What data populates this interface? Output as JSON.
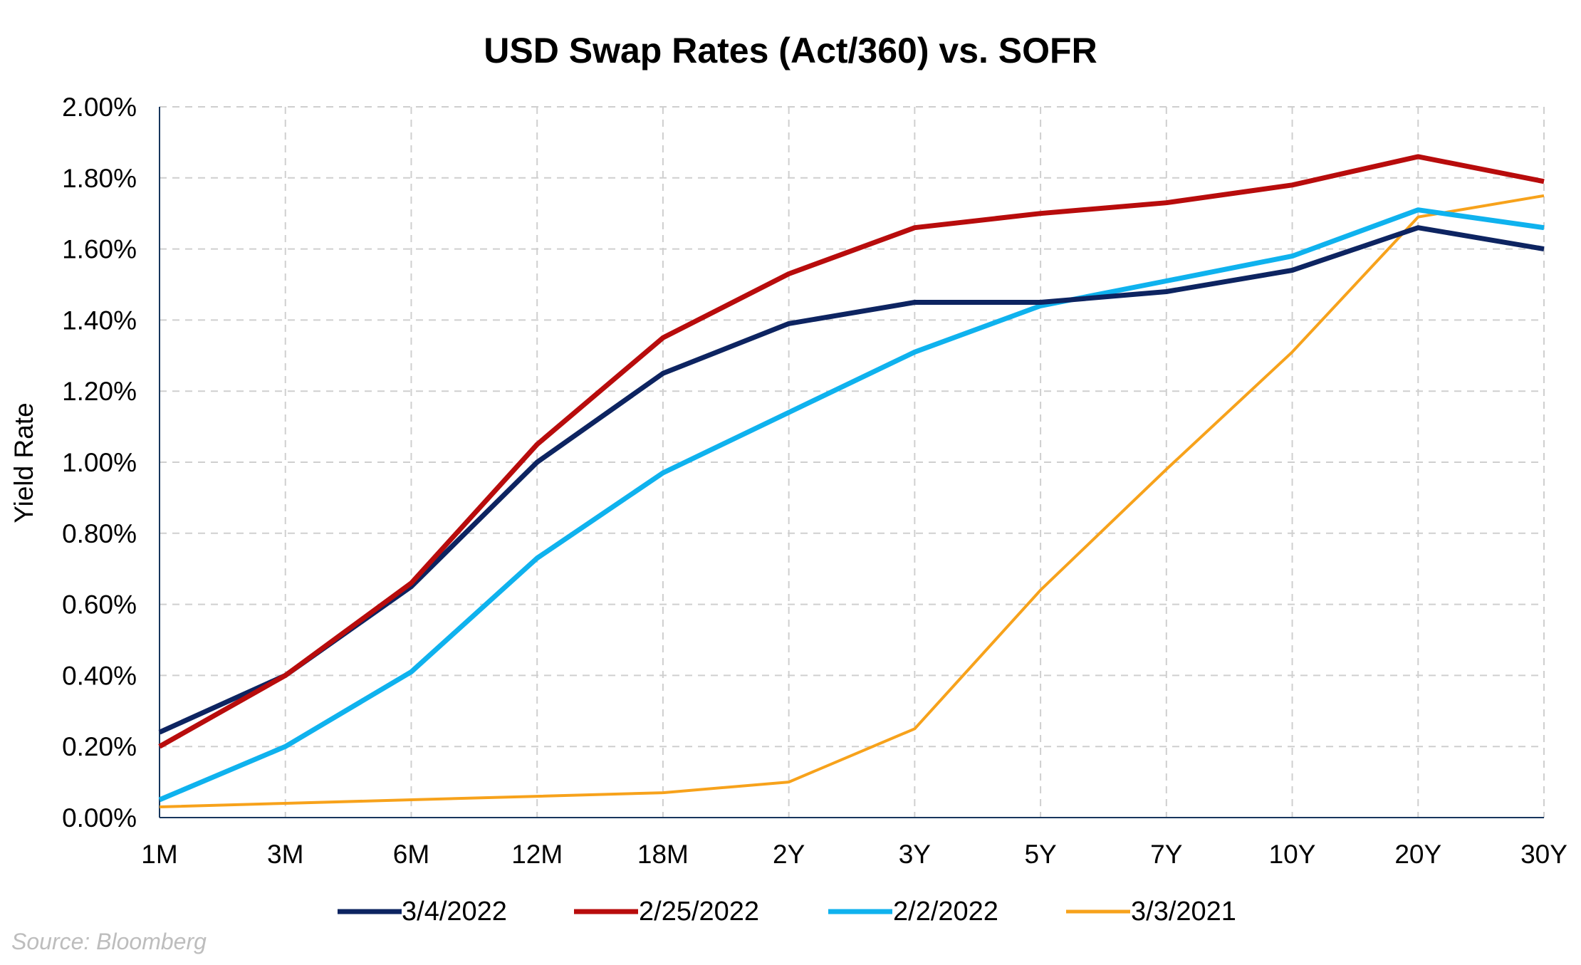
{
  "chart_data": {
    "type": "line",
    "title": "USD Swap Rates (Act/360) vs. SOFR",
    "xlabel": "",
    "ylabel": "Yield Rate",
    "categories": [
      "1M",
      "3M",
      "6M",
      "12M",
      "18M",
      "2Y",
      "3Y",
      "5Y",
      "7Y",
      "10Y",
      "20Y",
      "30Y"
    ],
    "ylim": [
      0,
      2.0
    ],
    "y_ticks": [
      0,
      0.2,
      0.4,
      0.6,
      0.8,
      1.0,
      1.2,
      1.4,
      1.6,
      1.8,
      2.0
    ],
    "y_tick_labels": [
      "0.00%",
      "0.20%",
      "0.40%",
      "0.60%",
      "0.80%",
      "1.00%",
      "1.20%",
      "1.40%",
      "1.60%",
      "1.80%",
      "2.00%"
    ],
    "grid": true,
    "legend_position": "bottom",
    "series": [
      {
        "name": "3/4/2022",
        "color": "#0d2461",
        "values": [
          0.24,
          0.4,
          0.65,
          1.0,
          1.25,
          1.39,
          1.45,
          1.45,
          1.48,
          1.54,
          1.66,
          1.6
        ]
      },
      {
        "name": "2/25/2022",
        "color": "#b80c0c",
        "values": [
          0.2,
          0.4,
          0.66,
          1.05,
          1.35,
          1.53,
          1.66,
          1.7,
          1.73,
          1.78,
          1.86,
          1.79
        ]
      },
      {
        "name": "2/2/2022",
        "color": "#0fb2ee",
        "values": [
          0.05,
          0.2,
          0.41,
          0.73,
          0.97,
          1.14,
          1.31,
          1.44,
          1.51,
          1.58,
          1.71,
          1.66
        ]
      },
      {
        "name": "3/3/2021",
        "color": "#f7a21b",
        "values": [
          0.03,
          0.04,
          0.05,
          0.06,
          0.07,
          0.1,
          0.25,
          0.64,
          0.98,
          1.31,
          1.69,
          1.75
        ]
      }
    ]
  },
  "source_note": "Source: Bloomberg"
}
